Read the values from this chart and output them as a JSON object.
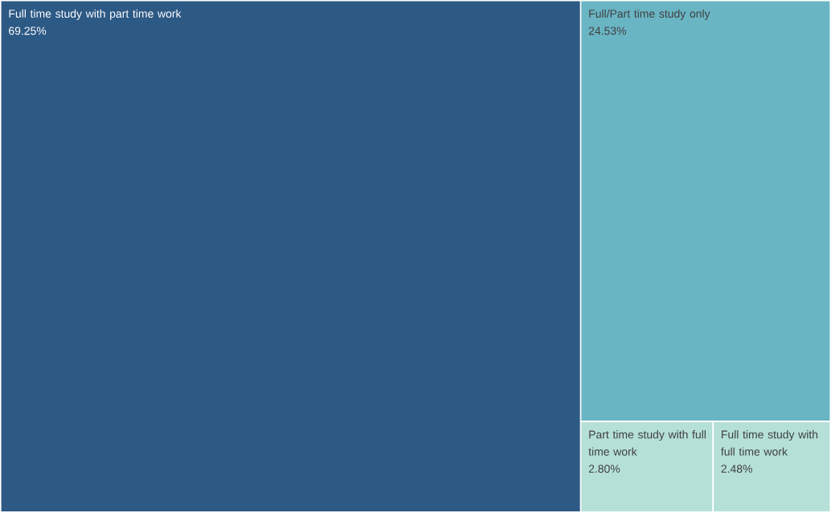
{
  "chart_data": {
    "type": "other",
    "categories": [
      "Full time study with part time work",
      "Full/Part time study only",
      "Part time study with full time work",
      "Full time study with full time work"
    ],
    "values": [
      69.25,
      24.53,
      2.8,
      2.48
    ],
    "value_labels": [
      "69.25%",
      "24.53%",
      "2.80%",
      "2.48%"
    ],
    "colors": [
      "#2d5985",
      "#6ab5c4",
      "#b5e0d8",
      "#b5e0d8"
    ]
  }
}
